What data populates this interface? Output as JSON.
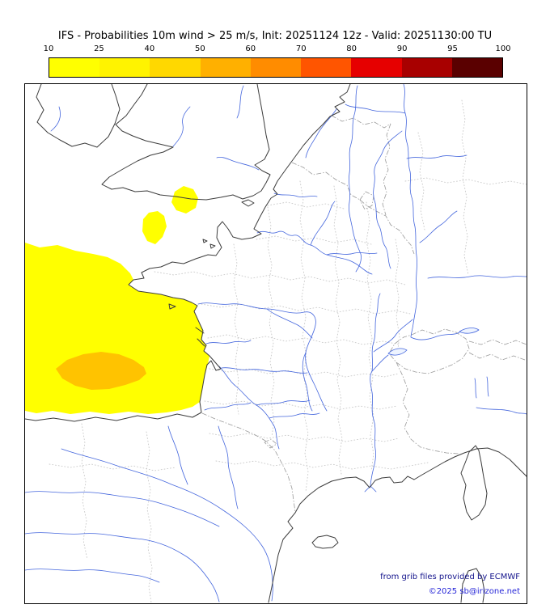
{
  "title": "IFS - Probabilities 10m wind > 25 m/s, Init: 20251124 12z - Valid: 20251130:00 TU",
  "colorbar": {
    "tick_labels": [
      "10",
      "25",
      "40",
      "50",
      "60",
      "70",
      "80",
      "90",
      "95",
      "100"
    ],
    "segment_colors": [
      "#ffff00",
      "#fff300",
      "#ffd800",
      "#ffb000",
      "#ff8c00",
      "#ff5500",
      "#e60000",
      "#a80000",
      "#5a0000"
    ],
    "border_color": "#000000"
  },
  "map": {
    "background_color": "#ffffff",
    "coast_color": "#3c3c3c",
    "river_color": "#4466dd",
    "country_border_color": "#9a9a9a",
    "department_border_color": "#c8c8c8",
    "frame_color": "#000000",
    "overlay_regions": [
      {
        "name": "bay-of-biscay-blob",
        "probability_range": "10-25",
        "color": "#ffff00"
      },
      {
        "name": "biscay-orange-core",
        "probability_range": "25-50",
        "color": "#ffc300"
      },
      {
        "name": "channel-patch-east",
        "probability_range": "10-25",
        "color": "#ffff00"
      },
      {
        "name": "channel-patch-west",
        "probability_range": "10-25",
        "color": "#ffff00"
      }
    ]
  },
  "credits": {
    "line1": "from grib files provided by ECMWF",
    "line1_color": "#14148c",
    "line2": "©2025 sb@irizone.net",
    "line2_color": "#2626d8"
  }
}
